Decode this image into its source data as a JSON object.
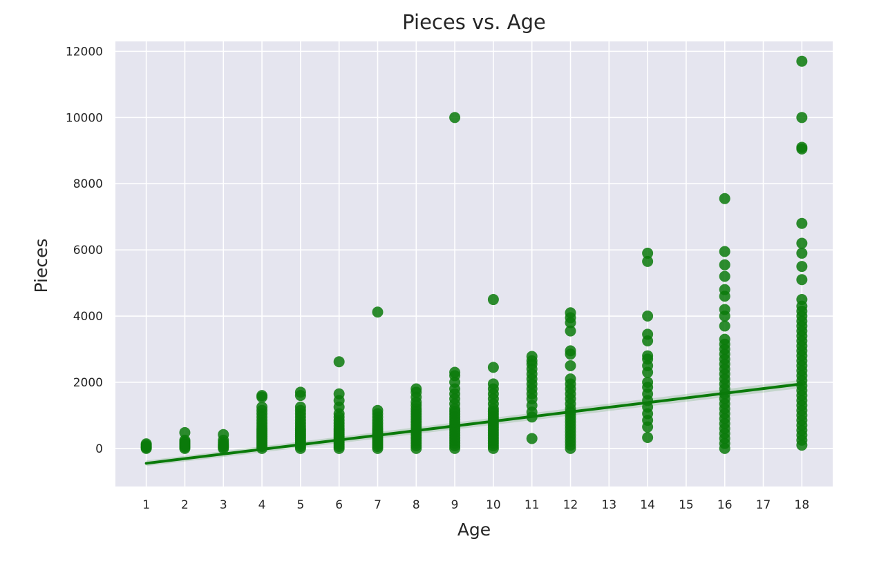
{
  "chart_data": {
    "type": "scatter",
    "title": "Pieces vs. Age",
    "xlabel": "Age",
    "ylabel": "Pieces",
    "xlim": [
      0.2,
      18.8
    ],
    "ylim": [
      -1150,
      12300
    ],
    "grid": true,
    "x_ticks": [
      1,
      2,
      3,
      4,
      5,
      6,
      7,
      8,
      9,
      10,
      11,
      12,
      13,
      14,
      15,
      16,
      17,
      18
    ],
    "y_ticks": [
      0,
      2000,
      4000,
      6000,
      8000,
      10000,
      12000
    ],
    "point_color": "#0a7a0a",
    "background": "#e5e5ef",
    "regression": {
      "x": [
        1,
        18
      ],
      "y": [
        -450,
        1950
      ]
    },
    "groups": [
      {
        "x": 1,
        "y": [
          0,
          30,
          60,
          100,
          140
        ]
      },
      {
        "x": 2,
        "y": [
          0,
          40,
          80,
          120,
          160,
          200,
          250,
          480
        ]
      },
      {
        "x": 3,
        "y": [
          0,
          40,
          80,
          120,
          180,
          250,
          420
        ]
      },
      {
        "x": 4,
        "y": [
          0,
          60,
          120,
          180,
          240,
          300,
          360,
          420,
          480,
          540,
          600,
          680,
          760,
          850,
          950,
          1050,
          1150,
          1250,
          1550,
          1600
        ]
      },
      {
        "x": 5,
        "y": [
          0,
          60,
          120,
          180,
          240,
          300,
          360,
          420,
          480,
          540,
          600,
          680,
          760,
          850,
          950,
          1050,
          1150,
          1250,
          1600,
          1700
        ]
      },
      {
        "x": 6,
        "y": [
          0,
          60,
          120,
          180,
          240,
          300,
          360,
          420,
          480,
          540,
          600,
          680,
          760,
          850,
          950,
          1050,
          1250,
          1450,
          1650,
          2620
        ]
      },
      {
        "x": 7,
        "y": [
          0,
          60,
          120,
          180,
          240,
          300,
          360,
          420,
          480,
          540,
          600,
          680,
          760,
          850,
          950,
          1050,
          1150,
          4120
        ]
      },
      {
        "x": 8,
        "y": [
          0,
          80,
          160,
          240,
          320,
          400,
          480,
          560,
          640,
          720,
          800,
          880,
          960,
          1040,
          1120,
          1200,
          1300,
          1400,
          1550,
          1700,
          1800
        ]
      },
      {
        "x": 9,
        "y": [
          0,
          80,
          160,
          240,
          320,
          400,
          480,
          560,
          640,
          720,
          800,
          880,
          960,
          1040,
          1120,
          1200,
          1350,
          1500,
          1650,
          1800,
          2000,
          2200,
          2300,
          10000
        ]
      },
      {
        "x": 10,
        "y": [
          0,
          80,
          160,
          240,
          320,
          400,
          480,
          560,
          640,
          720,
          800,
          880,
          960,
          1040,
          1120,
          1200,
          1350,
          1500,
          1650,
          1800,
          1950,
          2450,
          4500
        ]
      },
      {
        "x": 11,
        "y": [
          300,
          950,
          1100,
          1300,
          1500,
          1650,
          1800,
          1950,
          2100,
          2250,
          2400,
          2550,
          2650,
          2780
        ]
      },
      {
        "x": 12,
        "y": [
          0,
          100,
          200,
          300,
          400,
          500,
          600,
          700,
          800,
          900,
          1000,
          1100,
          1200,
          1350,
          1500,
          1650,
          1800,
          1950,
          2100,
          2500,
          2850,
          2950,
          3550,
          3800,
          3950,
          4100
        ]
      },
      {
        "x": 14,
        "y": [
          330,
          650,
          850,
          1050,
          1250,
          1450,
          1650,
          1850,
          2000,
          2300,
          2500,
          2700,
          2800,
          3250,
          3450,
          4000,
          5650,
          5900
        ]
      },
      {
        "x": 16,
        "y": [
          0,
          150,
          300,
          450,
          600,
          750,
          900,
          1050,
          1200,
          1350,
          1500,
          1650,
          1800,
          1950,
          2100,
          2250,
          2400,
          2550,
          2700,
          2850,
          3000,
          3150,
          3300,
          3700,
          4000,
          4200,
          4600,
          4800,
          5200,
          5550,
          5950,
          7550
        ]
      },
      {
        "x": 18,
        "y": [
          100,
          250,
          400,
          550,
          700,
          850,
          1000,
          1150,
          1300,
          1450,
          1600,
          1750,
          1900,
          2050,
          2200,
          2350,
          2500,
          2650,
          2800,
          2950,
          3100,
          3250,
          3400,
          3550,
          3700,
          3850,
          4000,
          4150,
          4300,
          4500,
          5100,
          5500,
          5900,
          6200,
          6800,
          9050,
          9100,
          10000,
          11700
        ]
      }
    ]
  }
}
